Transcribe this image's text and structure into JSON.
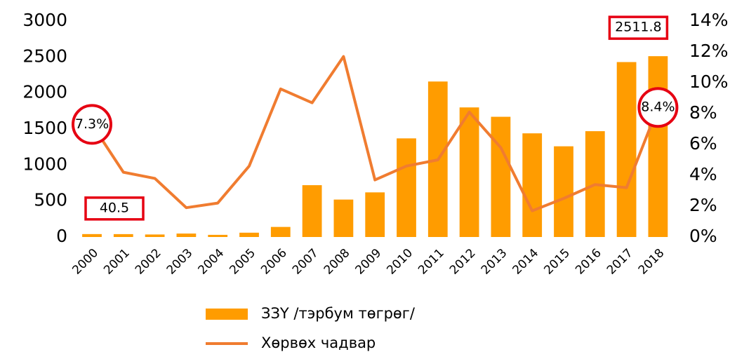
{
  "chart_data": {
    "type": "bar",
    "categories": [
      "2000",
      "2001",
      "2002",
      "2003",
      "2004",
      "2005",
      "2006",
      "2007",
      "2008",
      "2009",
      "2010",
      "2011",
      "2012",
      "2013",
      "2014",
      "2015",
      "2016",
      "2017",
      "2018"
    ],
    "series": [
      {
        "name": "ЗЗҮ /тэрбум төгрөг/",
        "type": "bar",
        "color": "#ff9c00",
        "values": [
          40.5,
          40,
          35,
          48,
          30,
          60,
          140,
          720,
          520,
          620,
          1370,
          2160,
          1800,
          1670,
          1440,
          1260,
          1470,
          2430,
          2511.8
        ],
        "value_labels": [
          "40.5",
          null,
          null,
          null,
          null,
          null,
          null,
          null,
          null,
          null,
          null,
          null,
          null,
          null,
          null,
          null,
          null,
          null,
          "2511.8"
        ]
      },
      {
        "name": "Хөрвөх чадвар",
        "type": "line",
        "axis": "y2",
        "color": "#f07c30",
        "values": [
          7.3,
          4.2,
          3.8,
          1.9,
          2.2,
          4.6,
          9.6,
          8.7,
          11.7,
          3.7,
          4.6,
          5.0,
          8.1,
          5.8,
          1.7,
          2.5,
          3.4,
          3.2,
          8.4
        ],
        "value_labels": [
          "7.3%",
          null,
          null,
          null,
          null,
          null,
          null,
          null,
          null,
          null,
          null,
          null,
          null,
          null,
          null,
          null,
          null,
          null,
          "8.4%"
        ]
      }
    ],
    "ylim": [
      0,
      3000
    ],
    "yticks": [
      0,
      500,
      1000,
      1500,
      2000,
      2500,
      3000
    ],
    "y2lim": [
      0,
      14
    ],
    "y2ticks": [
      {
        "value": 0,
        "label": "0%"
      },
      {
        "value": 2,
        "label": "2%"
      },
      {
        "value": 4,
        "label": "4%"
      },
      {
        "value": 6,
        "label": "6%"
      },
      {
        "value": 8,
        "label": "8%"
      },
      {
        "value": 10,
        "label": "10%"
      },
      {
        "value": 12,
        "label": "12%"
      },
      {
        "value": 14,
        "label": "14%"
      }
    ],
    "legend": "bottom"
  }
}
